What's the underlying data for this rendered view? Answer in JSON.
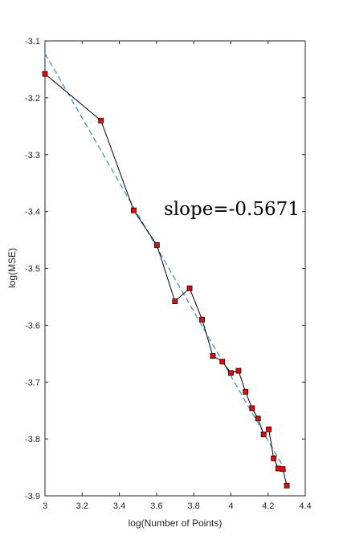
{
  "chart_data": {
    "type": "line",
    "xlabel": "log(Number of Points)",
    "ylabel": "log(MSE)",
    "xlim": [
      3,
      4.4
    ],
    "ylim": [
      -3.9,
      -3.1
    ],
    "xticks": [
      "3",
      "3.2",
      "3.4",
      "3.6",
      "3.8",
      "4",
      "4.2",
      "4.4"
    ],
    "yticks": [
      "-3.1",
      "-3.2",
      "-3.3",
      "-3.4",
      "-3.5",
      "-3.6",
      "-3.7",
      "-3.8",
      "-3.9"
    ],
    "annotation": "slope=-0.5671",
    "grid": false,
    "series": [
      {
        "x": [
          3.0,
          3.301,
          3.477,
          3.602,
          3.699,
          3.778,
          3.845,
          3.903,
          3.954,
          4.0,
          4.041,
          4.079,
          4.114,
          4.146,
          4.176,
          4.204,
          4.23,
          4.255,
          4.279,
          4.301
        ],
        "y": [
          -3.158,
          -3.24,
          -3.398,
          -3.459,
          -3.558,
          -3.535,
          -3.59,
          -3.654,
          -3.664,
          -3.684,
          -3.68,
          -3.717,
          -3.746,
          -3.764,
          -3.792,
          -3.783,
          -3.834,
          -3.852,
          -3.853,
          -3.882
        ],
        "color": "#000000",
        "marker_color": "#ff0000",
        "marker": "square"
      }
    ],
    "fit_line": {
      "x": [
        3.0,
        4.301
      ],
      "y": [
        -3.122,
        -3.86
      ],
      "color": "#3a8ac4",
      "style": "dashed"
    }
  }
}
